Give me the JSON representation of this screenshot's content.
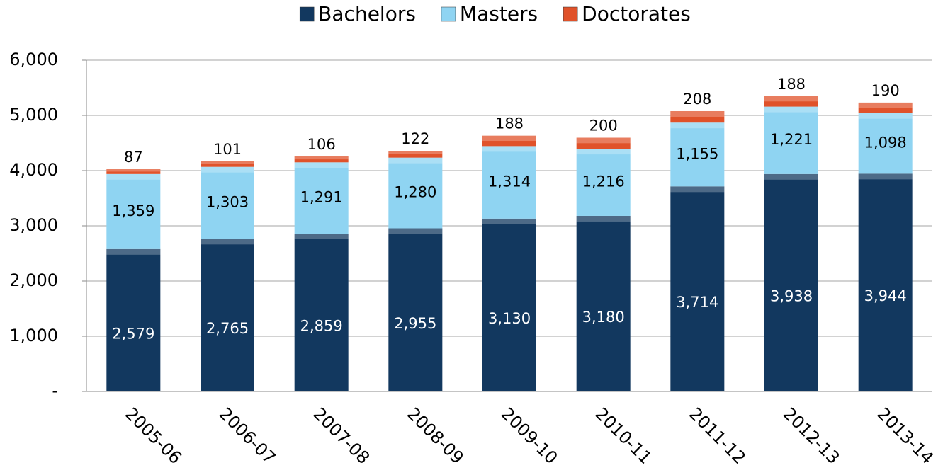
{
  "chart_data": {
    "type": "stacked_bar",
    "categories": [
      "2005-06",
      "2006-07",
      "2007-08",
      "2008-09",
      "2009-10",
      "2010-11",
      "2011-12",
      "2012-13",
      "2013-14"
    ],
    "series": [
      {
        "name": "Bachelors",
        "color": "#12385f",
        "values": [
          2579,
          2765,
          2859,
          2955,
          3130,
          3180,
          3714,
          3938,
          3944
        ],
        "value_labels": [
          "2,579",
          "2,765",
          "2,859",
          "2,955",
          "3,130",
          "3,180",
          "3,714",
          "3,938",
          "3,944"
        ]
      },
      {
        "name": "Masters",
        "color": "#8fd4f2",
        "values": [
          1359,
          1303,
          1291,
          1280,
          1314,
          1216,
          1155,
          1221,
          1098
        ],
        "value_labels": [
          "1,359",
          "1,303",
          "1,291",
          "1,280",
          "1,314",
          "1,216",
          "1,155",
          "1,221",
          "1,098"
        ]
      },
      {
        "name": "Doctorates",
        "color": "#e0522a",
        "values": [
          87,
          101,
          106,
          122,
          188,
          200,
          208,
          188,
          190
        ]
      }
    ],
    "ylim": [
      0,
      6000
    ],
    "yticks": [
      {
        "value": 0,
        "label": "-"
      },
      {
        "value": 1000,
        "label": "1,000"
      },
      {
        "value": 2000,
        "label": "2,000"
      },
      {
        "value": 3000,
        "label": "3,000"
      },
      {
        "value": 4000,
        "label": "4,000"
      },
      {
        "value": 5000,
        "label": "5,000"
      },
      {
        "value": 6000,
        "label": "6,000"
      }
    ],
    "grid": true,
    "legend": "top"
  }
}
